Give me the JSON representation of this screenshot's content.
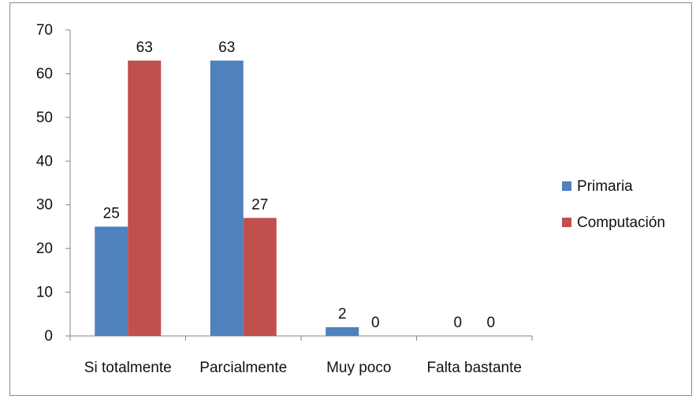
{
  "chart_data": {
    "type": "bar",
    "categories": [
      "Si totalmente",
      "Parcialmente",
      "Muy poco",
      "Falta bastante"
    ],
    "series": [
      {
        "name": "Primaria",
        "values": [
          25,
          63,
          2,
          0
        ],
        "color": "#4f81bd"
      },
      {
        "name": "Computación",
        "values": [
          63,
          27,
          0,
          0
        ],
        "color": "#c0504d"
      }
    ],
    "ylim": [
      0,
      70
    ],
    "yticks": [
      0,
      10,
      20,
      30,
      40,
      50,
      60,
      70
    ],
    "grid": false,
    "legend": "right",
    "title": "",
    "xlabel": "",
    "ylabel": ""
  }
}
